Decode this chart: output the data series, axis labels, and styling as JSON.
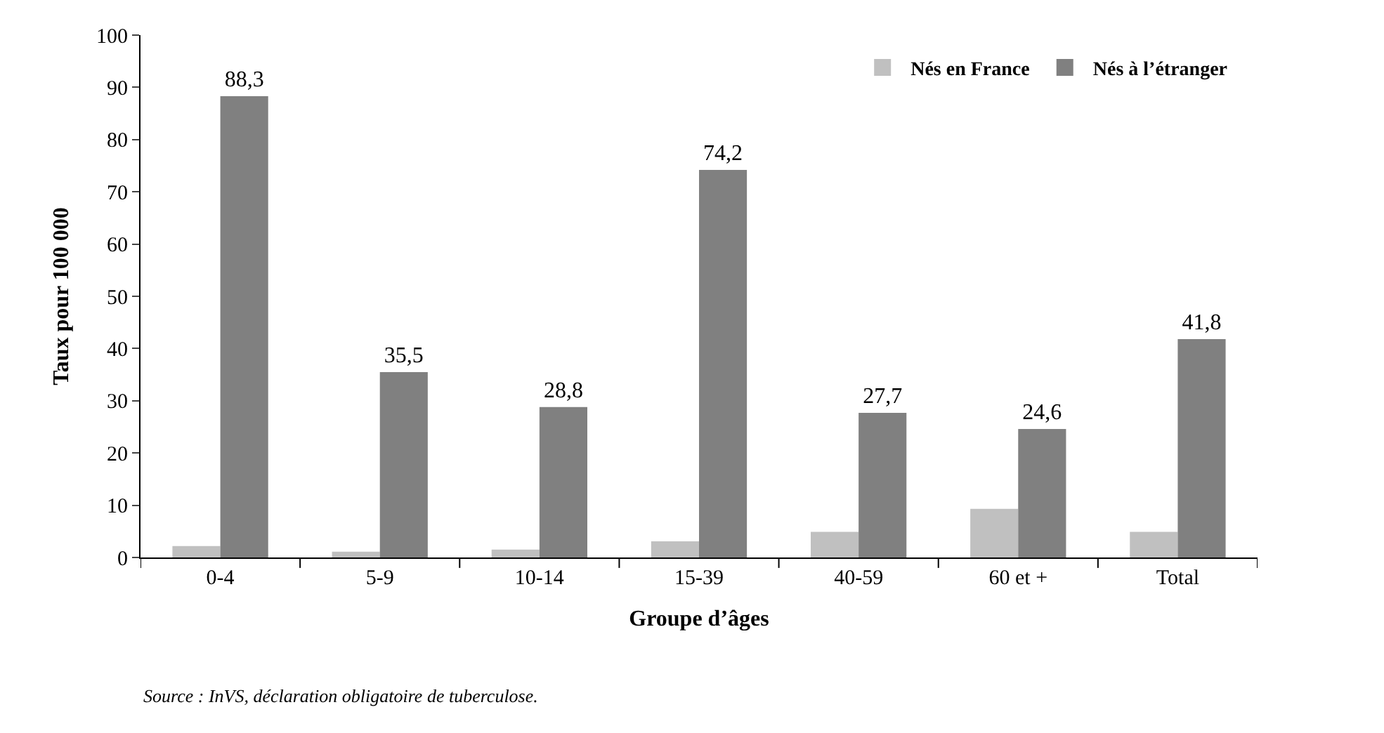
{
  "chart_data": {
    "type": "bar",
    "xlabel": "Groupe d’âges",
    "ylabel": "Taux pour 100 000",
    "categories": [
      "0-4",
      "5-9",
      "10-14",
      "15-39",
      "40-59",
      "60 et +",
      "Total"
    ],
    "series": [
      {
        "name": "Nés en France",
        "color": "#c0c0c0",
        "values": [
          2.2,
          1.1,
          1.5,
          3.1,
          4.9,
          9.3,
          4.9
        ]
      },
      {
        "name": "Nés à l’étranger",
        "color": "#808080",
        "values": [
          88.3,
          35.5,
          28.8,
          74.2,
          27.7,
          24.6,
          41.8
        ],
        "value_labels": [
          "88,3",
          "35,5",
          "28,8",
          "74,2",
          "27,7",
          "24,6",
          "41,8"
        ]
      }
    ],
    "ylim": [
      0,
      100
    ],
    "yticks": [
      0,
      10,
      20,
      30,
      40,
      50,
      60,
      70,
      80,
      90,
      100
    ],
    "legend": "top right",
    "annotations": [
      "Source : InVS, déclaration obligatoire de tuberculose."
    ]
  }
}
